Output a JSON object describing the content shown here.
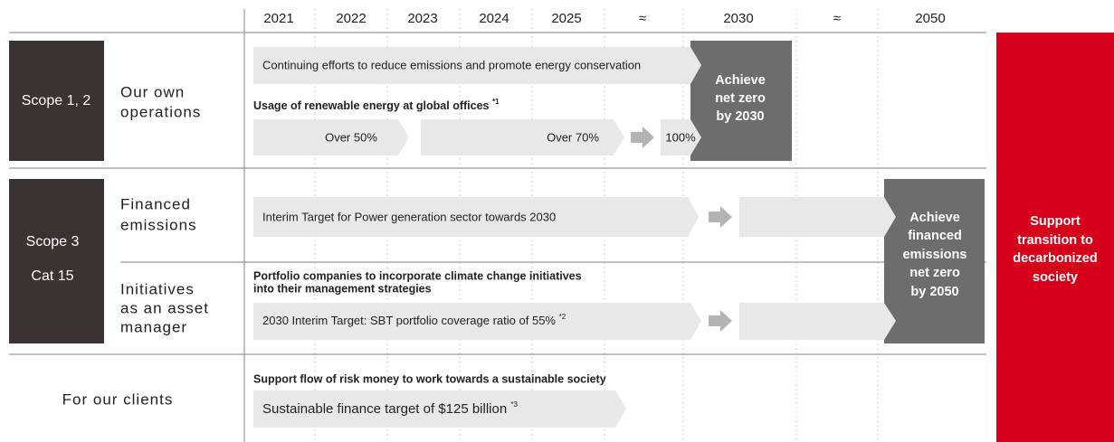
{
  "timeline": [
    "2021",
    "2022",
    "2023",
    "2024",
    "2025",
    "≈",
    "2030",
    "≈",
    "2050"
  ],
  "scope12": {
    "label": "Scope 1, 2",
    "name": [
      "Our own",
      "operations"
    ],
    "effort": "Continuing efforts to reduce emissions and promote energy conservation",
    "renewable_title": "Usage of renewable energy at global offices",
    "renewable_note": "*1",
    "steps": [
      "Over 50%",
      "Over 70%",
      "100%"
    ],
    "goal": [
      "Achieve",
      "net zero",
      "by 2030"
    ]
  },
  "scope3": {
    "label": "Scope 3",
    "sublabel": "Cat 15",
    "financed": {
      "name": [
        "Financed",
        "emissions"
      ],
      "target": "Interim Target for Power generation sector towards 2030"
    },
    "asset_manager": {
      "name": [
        "Initiatives",
        "as an asset",
        "manager"
      ],
      "title": [
        "Portfolio companies to incorporate climate change initiatives",
        "into their management strategies"
      ],
      "target": "2030 Interim Target: SBT portfolio coverage ratio of 55%",
      "note": "*2"
    },
    "goal": [
      "Achieve",
      "financed",
      "emissions",
      "net zero",
      "by 2050"
    ]
  },
  "clients": {
    "name": "For our clients",
    "title": "Support flow of risk money to work towards a sustainable society",
    "target": "Sustainable finance target of $125 billion",
    "note": "*3"
  },
  "support": [
    "Support",
    "transition to",
    "decarbonized",
    "society"
  ]
}
